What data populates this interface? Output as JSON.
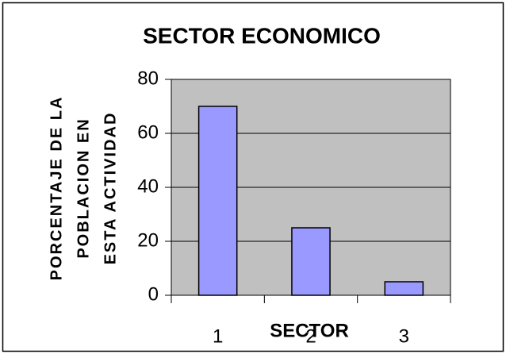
{
  "chart_data": {
    "type": "bar",
    "title": "SECTOR ECONOMICO",
    "x_label": "SECTOR",
    "y_label": [
      "PORCENTAJE DE LA",
      "POBLACION EN",
      "ESTA ACTIVIDAD"
    ],
    "categories": [
      "1",
      "2",
      "3"
    ],
    "values": [
      70,
      25,
      5
    ],
    "color": "#9999ff",
    "ylim": [
      0,
      80
    ],
    "yticks": [
      0,
      20,
      40,
      60,
      80
    ],
    "grid": true,
    "plot_background": "#c0c0c0"
  }
}
